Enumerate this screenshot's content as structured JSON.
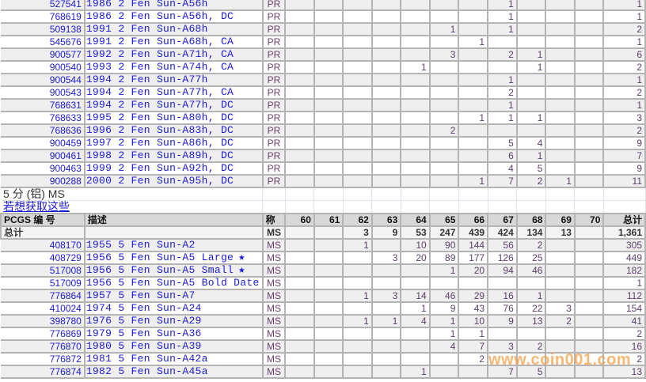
{
  "grades": [
    "60",
    "61",
    "62",
    "63",
    "64",
    "65",
    "66",
    "67",
    "68",
    "69",
    "70"
  ],
  "colors": {
    "link": "#1a1ad8",
    "row_alt": "#efefef",
    "header": "#d8d8d8",
    "watermark": "#f5a046"
  },
  "section_top": {
    "rows": [
      {
        "id": "527541",
        "desc": "1986 2 Fen Sun-A56h",
        "grade": "PR",
        "vals": {
          "67": "1"
        },
        "total": "1"
      },
      {
        "id": "768619",
        "desc": "1986 2 Fen Sun-A56h, DC",
        "grade": "PR",
        "vals": {
          "67": "1"
        },
        "total": "1"
      },
      {
        "id": "509138",
        "desc": "1991 2 Fen Sun-A68h",
        "grade": "PR",
        "vals": {
          "65": "1",
          "67": "1"
        },
        "total": "2"
      },
      {
        "id": "545676",
        "desc": "1991 2 Fen Sun-A68h, CA",
        "grade": "PR",
        "vals": {
          "66": "1"
        },
        "total": "1"
      },
      {
        "id": "900577",
        "desc": "1992 2 Fen Sun-A71h, CA",
        "grade": "PR",
        "vals": {
          "65": "3",
          "67": "2",
          "68": "1"
        },
        "total": "6"
      },
      {
        "id": "900540",
        "desc": "1993 2 Fen Sun-A74h, CA",
        "grade": "PR",
        "vals": {
          "64": "1",
          "68": "1"
        },
        "total": "2"
      },
      {
        "id": "900544",
        "desc": "1994 2 Fen Sun-A77h",
        "grade": "PR",
        "vals": {
          "67": "1"
        },
        "total": "1"
      },
      {
        "id": "900543",
        "desc": "1994 2 Fen Sun-A77h, CA",
        "grade": "PR",
        "vals": {
          "67": "2"
        },
        "total": "2"
      },
      {
        "id": "768631",
        "desc": "1994 2 Fen Sun-A77h, DC",
        "grade": "PR",
        "vals": {
          "67": "1"
        },
        "total": "1"
      },
      {
        "id": "768633",
        "desc": "1995 2 Fen Sun-A80h, DC",
        "grade": "PR",
        "vals": {
          "66": "1",
          "67": "1",
          "68": "1"
        },
        "total": "3"
      },
      {
        "id": "768636",
        "desc": "1996 2 Fen Sun-A83h, DC",
        "grade": "PR",
        "vals": {
          "65": "2"
        },
        "total": "2"
      },
      {
        "id": "900459",
        "desc": "1997 2 Fen Sun-A86h, DC",
        "grade": "PR",
        "vals": {
          "67": "5",
          "68": "4"
        },
        "total": "9"
      },
      {
        "id": "900461",
        "desc": "1998 2 Fen Sun-A89h, DC",
        "grade": "PR",
        "vals": {
          "67": "6",
          "68": "1"
        },
        "total": "7"
      },
      {
        "id": "900463",
        "desc": "1999 2 Fen Sun-A92h, DC",
        "grade": "PR",
        "vals": {
          "67": "4",
          "68": "5"
        },
        "total": "9"
      },
      {
        "id": "900288",
        "desc": "2000 2 Fen Sun-A95h, DC",
        "grade": "PR",
        "vals": {
          "66": "1",
          "67": "7",
          "68": "2",
          "69": "1"
        },
        "total": "11"
      }
    ]
  },
  "section_bottom": {
    "title": "5 分 (铝) MS",
    "link": "若想获取这些",
    "header": {
      "id": "PCGS 编 号",
      "desc": "描述",
      "grade": "称",
      "total": "总计"
    },
    "total_row": {
      "label": "总计",
      "grade": "MS",
      "vals": {
        "62": "3",
        "63": "9",
        "64": "53",
        "65": "247",
        "66": "439",
        "67": "424",
        "68": "134",
        "69": "13"
      },
      "total": "1,361"
    },
    "rows": [
      {
        "id": "408170",
        "desc": "1955 5 Fen Sun-A2",
        "grade": "MS",
        "vals": {
          "62": "1",
          "64": "10",
          "65": "90",
          "66": "144",
          "67": "56",
          "68": "2"
        },
        "total": "305"
      },
      {
        "id": "408729",
        "desc": "1956 5 Fen Sun-A5 Large",
        "star": true,
        "grade": "MS",
        "vals": {
          "63": "3",
          "64": "20",
          "65": "89",
          "66": "177",
          "67": "126",
          "68": "25"
        },
        "total": "449"
      },
      {
        "id": "517008",
        "desc": "1956 5 Fen Sun-A5 Small",
        "star": true,
        "grade": "MS",
        "vals": {
          "65": "1",
          "66": "20",
          "67": "94",
          "68": "46"
        },
        "total": "182"
      },
      {
        "id": "517009",
        "desc": "1956 5 Fen Sun-A5 Bold Date",
        "grade": "MS",
        "vals": {},
        "total": "1"
      },
      {
        "id": "776864",
        "desc": "1957 5 Fen Sun-A7",
        "grade": "MS",
        "vals": {
          "62": "1",
          "63": "3",
          "64": "14",
          "65": "46",
          "66": "29",
          "67": "16",
          "68": "1"
        },
        "total": "112"
      },
      {
        "id": "410024",
        "desc": "1974 5 Fen Sun-A24",
        "grade": "MS",
        "vals": {
          "64": "1",
          "65": "9",
          "66": "43",
          "67": "76",
          "68": "22",
          "69": "3"
        },
        "total": "154"
      },
      {
        "id": "398780",
        "desc": "1976 5 Fen Sun-A29",
        "grade": "MS",
        "vals": {
          "62": "1",
          "63": "1",
          "64": "4",
          "65": "1",
          "66": "10",
          "67": "9",
          "68": "13",
          "69": "2"
        },
        "total": "41"
      },
      {
        "id": "776869",
        "desc": "1979 5 Fen Sun-A36",
        "grade": "MS",
        "vals": {
          "65": "1",
          "66": "1"
        },
        "total": "2"
      },
      {
        "id": "776870",
        "desc": "1980 5 Fen Sun-A39",
        "grade": "MS",
        "vals": {
          "65": "4",
          "66": "7",
          "67": "3",
          "68": "2"
        },
        "total": "16"
      },
      {
        "id": "776872",
        "desc": "1981 5 Fen Sun-A42a",
        "grade": "MS",
        "vals": {
          "66": "2"
        },
        "total": "2"
      },
      {
        "id": "776874",
        "desc": "1982 5 Fen Sun-A45a",
        "grade": "MS",
        "vals": {
          "64": "1",
          "67": "7",
          "68": "5"
        },
        "total": "13"
      }
    ]
  },
  "watermark": "www.coin001.com"
}
